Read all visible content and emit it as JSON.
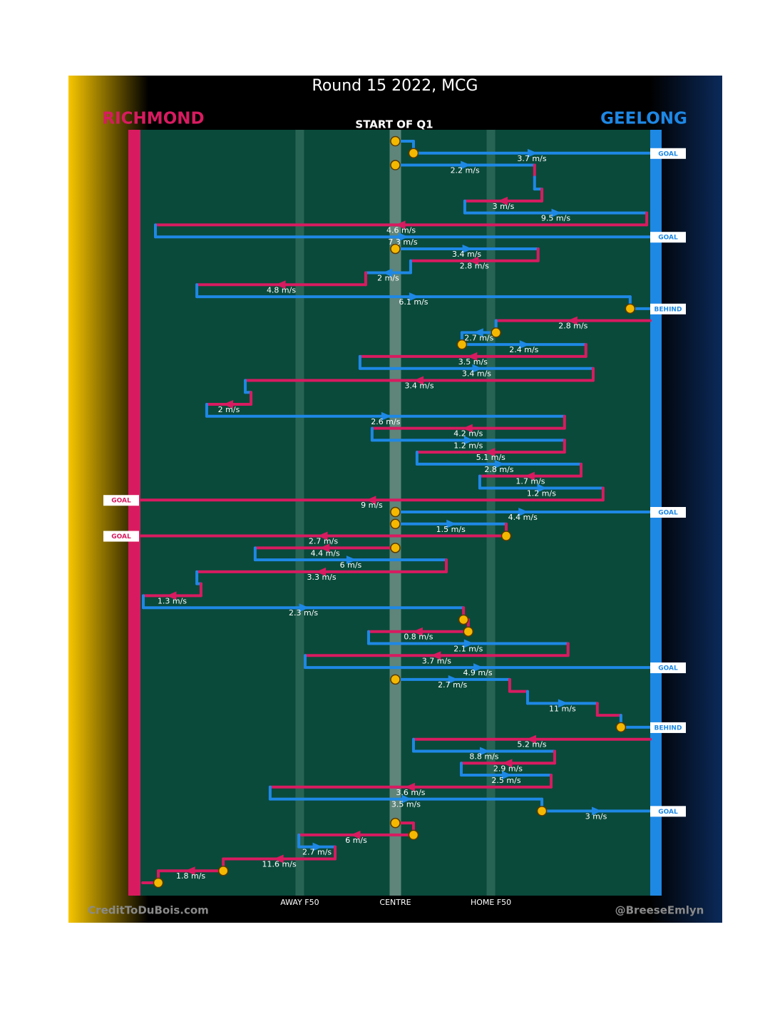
{
  "chart_data": {
    "type": "chain",
    "title": "Round 15 2022, MCG",
    "subtitle": "START OF Q1",
    "credit_left": "CreditToDuBois.com",
    "credit_right": "@BreeseEmlyn",
    "teams": [
      {
        "name": "RICHMOND",
        "color": "#d81b60"
      },
      {
        "name": "GEELONG",
        "color": "#1e88e5"
      }
    ],
    "xlim": [
      0,
      160
    ],
    "xticks": [
      {
        "value": 50,
        "label": "AWAY F50"
      },
      {
        "value": 80,
        "label": "CENTRE"
      },
      {
        "value": 110,
        "label": "HOME F50"
      }
    ],
    "chains": [
      {
        "segments": [
          {
            "team": 1,
            "from": 80,
            "to": 85.7,
            "stoppage": true
          },
          {
            "team": 1,
            "from": 85.7,
            "to": 160,
            "speed": 3.7,
            "speed_label": "3.7 m/s",
            "stoppage": true,
            "result": "GOAL"
          }
        ]
      },
      {
        "segments": [
          {
            "team": 1,
            "from": 80,
            "to": 123.7,
            "speed": 2.2,
            "speed_label": "2.2 m/s",
            "stoppage": true
          },
          {
            "team": 0,
            "from": 123.7,
            "to": 123.7
          },
          {
            "team": 1,
            "from": 123.7,
            "to": 126
          },
          {
            "team": 0,
            "from": 126,
            "to": 101.8,
            "speed": 3,
            "speed_label": "3 m/s"
          },
          {
            "team": 1,
            "from": 101.8,
            "to": 158.9,
            "speed": 9.5,
            "speed_label": "9.5 m/s"
          },
          {
            "team": 0,
            "from": 158.9,
            "to": 4.7,
            "speed": 4.6,
            "speed_label": "4.6 m/s"
          },
          {
            "team": 1,
            "from": 4.7,
            "to": 160,
            "speed": 7.3,
            "speed_label": "7.3 m/s",
            "result": "GOAL"
          }
        ]
      },
      {
        "segments": [
          {
            "team": 1,
            "from": 80,
            "to": 124.8,
            "speed": 3.4,
            "speed_label": "3.4 m/s",
            "stoppage": true
          },
          {
            "team": 0,
            "from": 124.8,
            "to": 84.8,
            "speed": 2.8,
            "speed_label": "2.8 m/s"
          },
          {
            "team": 1,
            "from": 84.8,
            "to": 70.7,
            "speed": 2,
            "speed_label": "2 m/s"
          },
          {
            "team": 0,
            "from": 70.7,
            "to": 17.7,
            "speed": 4.8,
            "speed_label": "4.8 m/s"
          },
          {
            "team": 1,
            "from": 17.7,
            "to": 153.7,
            "speed": 6.1,
            "speed_label": "6.1 m/s"
          },
          {
            "team": 1,
            "from": 153.7,
            "to": 160,
            "stoppage": true,
            "result": "BEHIND"
          }
        ]
      },
      {
        "segments": [
          {
            "team": 0,
            "from": 160,
            "to": 111.6,
            "speed": 2.8,
            "speed_label": "2.8 m/s"
          },
          {
            "team": 1,
            "from": 111.6,
            "to": 100.9,
            "speed": 2.7,
            "speed_label": "2.7 m/s",
            "stoppage": true
          },
          {
            "team": 1,
            "from": 100.9,
            "to": 139.8,
            "speed": 2.4,
            "speed_label": "2.4 m/s",
            "stoppage": true
          },
          {
            "team": 0,
            "from": 139.8,
            "to": 68.9,
            "speed": 3.5,
            "speed_label": "3.5 m/s"
          },
          {
            "team": 1,
            "from": 68.9,
            "to": 142.1,
            "speed": 3.4,
            "speed_label": "3.4 m/s"
          },
          {
            "team": 0,
            "from": 142.1,
            "to": 32.9,
            "speed": 3.4,
            "speed_label": "3.4 m/s"
          },
          {
            "team": 1,
            "from": 32.9,
            "to": 34.7
          },
          {
            "team": 0,
            "from": 34.7,
            "to": 20.8,
            "speed": 2,
            "speed_label": "2 m/s"
          },
          {
            "team": 1,
            "from": 20.8,
            "to": 133.1,
            "speed": 2.6,
            "speed_label": "2.6 m/s"
          },
          {
            "team": 0,
            "from": 133.1,
            "to": 72.7,
            "speed": 4.2,
            "speed_label": "4.2 m/s"
          },
          {
            "team": 1,
            "from": 72.7,
            "to": 133.1,
            "speed": 1.2,
            "speed_label": "1.2 m/s"
          },
          {
            "team": 0,
            "from": 133.1,
            "to": 86.8,
            "speed": 5.1,
            "speed_label": "5.1 m/s"
          },
          {
            "team": 1,
            "from": 86.8,
            "to": 138.3,
            "speed": 2.8,
            "speed_label": "2.8 m/s"
          },
          {
            "team": 0,
            "from": 138.3,
            "to": 106.5,
            "speed": 1.7,
            "speed_label": "1.7 m/s"
          },
          {
            "team": 1,
            "from": 106.5,
            "to": 145.2,
            "speed": 1.2,
            "speed_label": "1.2 m/s"
          },
          {
            "team": 0,
            "from": 145.2,
            "to": 0,
            "speed": 9,
            "speed_label": "9 m/s",
            "result": "GOAL"
          }
        ]
      },
      {
        "segments": [
          {
            "team": 1,
            "from": 80,
            "to": 160,
            "speed": 4.4,
            "speed_label": "4.4 m/s",
            "stoppage": true,
            "result": "GOAL"
          }
        ]
      },
      {
        "segments": [
          {
            "team": 1,
            "from": 80,
            "to": 114.8,
            "speed": 1.5,
            "speed_label": "1.5 m/s",
            "stoppage": true
          },
          {
            "team": 0,
            "from": 114.8,
            "to": 0,
            "speed": 2.7,
            "speed_label": "2.7 m/s",
            "stoppage": true,
            "result": "GOAL"
          }
        ]
      },
      {
        "segments": [
          {
            "team": 0,
            "from": 80,
            "to": 36,
            "speed": 4.4,
            "speed_label": "4.4 m/s",
            "stoppage": true
          },
          {
            "team": 1,
            "from": 36,
            "to": 96,
            "speed": 6,
            "speed_label": "6 m/s"
          },
          {
            "team": 0,
            "from": 96,
            "to": 17.7,
            "speed": 3.3,
            "speed_label": "3.3 m/s"
          },
          {
            "team": 1,
            "from": 17.7,
            "to": 19
          },
          {
            "team": 0,
            "from": 19,
            "to": 0.9,
            "speed": 1.3,
            "speed_label": "1.3 m/s"
          },
          {
            "team": 1,
            "from": 0.9,
            "to": 101.4,
            "speed": 2.3,
            "speed_label": "2.3 m/s"
          },
          {
            "team": 0,
            "from": 101.4,
            "to": 101.4,
            "stoppage": true
          },
          {
            "team": 0,
            "from": 102.9,
            "to": 71.6,
            "speed": 0.8,
            "speed_label": "0.8 m/s",
            "stoppage": true
          },
          {
            "team": 1,
            "from": 71.6,
            "to": 134.2,
            "speed": 2.1,
            "speed_label": "2.1 m/s"
          },
          {
            "team": 0,
            "from": 134.2,
            "to": 51.7,
            "speed": 3.7,
            "speed_label": "3.7 m/s"
          },
          {
            "team": 1,
            "from": 51.7,
            "to": 160,
            "speed": 4.9,
            "speed_label": "4.9 m/s",
            "result": "GOAL"
          }
        ]
      },
      {
        "segments": [
          {
            "team": 1,
            "from": 80,
            "to": 115.9,
            "speed": 2.7,
            "speed_label": "2.7 m/s",
            "stoppage": true
          },
          {
            "team": 0,
            "from": 115.9,
            "to": 121.5
          },
          {
            "team": 1,
            "from": 121.5,
            "to": 143.4,
            "speed": 11,
            "speed_label": "11 m/s"
          },
          {
            "team": 0,
            "from": 143.4,
            "to": 150.8
          },
          {
            "team": 1,
            "from": 150.8,
            "to": 160,
            "stoppage": true,
            "result": "BEHIND"
          }
        ]
      },
      {
        "segments": [
          {
            "team": 0,
            "from": 160,
            "to": 85.7,
            "speed": 5.2,
            "speed_label": "5.2 m/s"
          },
          {
            "team": 1,
            "from": 85.7,
            "to": 130,
            "speed": 8.8,
            "speed_label": "8.8 m/s"
          },
          {
            "team": 0,
            "from": 130,
            "to": 100.7,
            "speed": 2.9,
            "speed_label": "2.9 m/s"
          },
          {
            "team": 1,
            "from": 100.7,
            "to": 128.9,
            "speed": 2.5,
            "speed_label": "2.5 m/s"
          },
          {
            "team": 0,
            "from": 128.9,
            "to": 40.7,
            "speed": 3.6,
            "speed_label": "3.6 m/s"
          },
          {
            "team": 1,
            "from": 40.7,
            "to": 126,
            "speed": 3.5,
            "speed_label": "3.5 m/s"
          },
          {
            "team": 1,
            "from": 126,
            "to": 160,
            "speed": 3,
            "speed_label": "3 m/s",
            "stoppage": true,
            "result": "GOAL"
          }
        ]
      },
      {
        "segments": [
          {
            "team": 0,
            "from": 80,
            "to": 85.7,
            "stoppage": true
          },
          {
            "team": 0,
            "from": 85.7,
            "to": 49.7,
            "speed": 6,
            "speed_label": "6 m/s",
            "stoppage": true
          },
          {
            "team": 1,
            "from": 49.7,
            "to": 61.1,
            "speed": 2.7,
            "speed_label": "2.7 m/s"
          },
          {
            "team": 0,
            "from": 61.1,
            "to": 26,
            "speed": 11.6,
            "speed_label": "11.6 m/s"
          },
          {
            "team": 0,
            "from": 26,
            "to": 5.6,
            "speed": 1.8,
            "speed_label": "1.8 m/s",
            "stoppage": true
          },
          {
            "team": 0,
            "from": 5.6,
            "to": 0.7,
            "stoppage": true
          }
        ]
      }
    ]
  }
}
